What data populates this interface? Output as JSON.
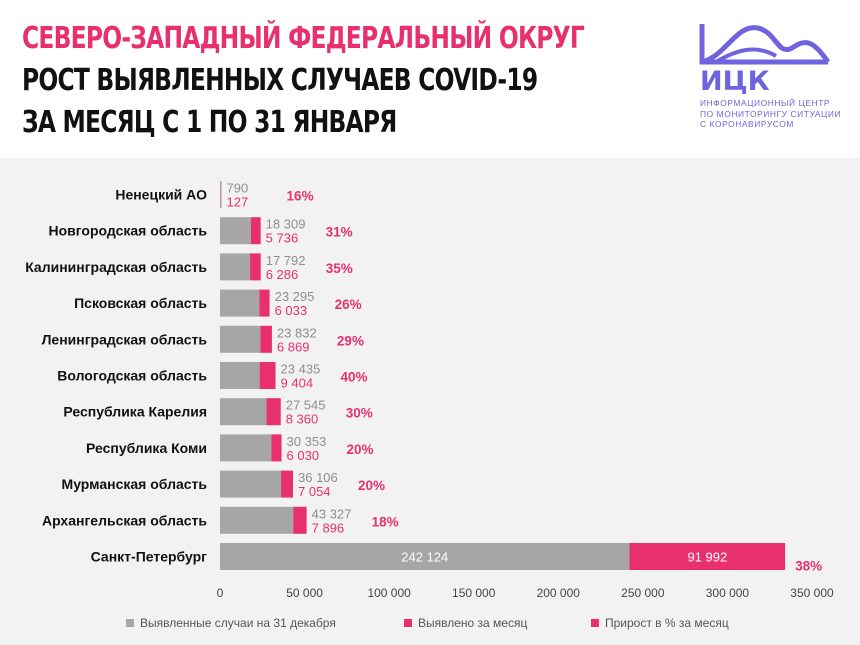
{
  "header": {
    "title_line1": "СЕВЕРО-ЗАПАДНЫЙ ФЕДЕРАЛЬНЫЙ ОКРУГ",
    "title_line2": "РОСТ ВЫЯВЛЕННЫХ СЛУЧАЕВ COVID-19",
    "title_line3": "ЗА МЕСЯЦ С 1 ПО 31 ЯНВАРЯ"
  },
  "logo": {
    "abbr": "ИЦК",
    "line1": "ИНФОРМАЦИОННЫЙ ЦЕНТР",
    "line2": "ПО МОНИТОРИНГУ СИТУАЦИИ",
    "line3": "С КОРОНАВИРУСОМ",
    "color": "#6f63e0"
  },
  "colors": {
    "base": "#a6a6a6",
    "increase": "#e8306f",
    "background": "#f2f2f2"
  },
  "chart_data": {
    "type": "bar",
    "orientation": "horizontal",
    "stacked": true,
    "categories": [
      "Ненецкий АО",
      "Новгородская область",
      "Калининградская область",
      "Псковская область",
      "Ленинградская область",
      "Вологодская область",
      "Республика Карелия",
      "Республика Коми",
      "Мурманская область",
      "Архангельская область",
      "Санкт-Петербург"
    ],
    "series": [
      {
        "name": "Выявленные случаи на 31 декабря",
        "values": [
          790,
          18309,
          17792,
          23295,
          23832,
          23435,
          27545,
          30353,
          36106,
          43327,
          242124
        ],
        "labels": [
          "790",
          "18 309",
          "17 792",
          "23 295",
          "23 832",
          "23 435",
          "27 545",
          "30 353",
          "36 106",
          "43 327",
          "242 124"
        ]
      },
      {
        "name": "Выявлено за месяц",
        "values": [
          127,
          5736,
          6286,
          6033,
          6869,
          9404,
          8360,
          6030,
          7054,
          7896,
          91992
        ],
        "labels": [
          "127",
          "5 736",
          "6 286",
          "6 033",
          "6 869",
          "9 404",
          "8 360",
          "6 030",
          "7 054",
          "7 896",
          "91 992"
        ]
      },
      {
        "name": "Прирост в % за месяц",
        "values": [
          16,
          31,
          35,
          26,
          29,
          40,
          30,
          20,
          20,
          18,
          38
        ],
        "labels": [
          "16%",
          "31%",
          "35%",
          "26%",
          "29%",
          "40%",
          "30%",
          "20%",
          "20%",
          "18%",
          "38%"
        ]
      }
    ],
    "xlim": [
      0,
      350000
    ],
    "xticks": [
      0,
      50000,
      100000,
      150000,
      200000,
      250000,
      300000,
      350000
    ],
    "xtick_labels": [
      "0",
      "50 000",
      "100 000",
      "150 000",
      "200 000",
      "250 000",
      "300 000",
      "350 000"
    ],
    "grid": false,
    "legend": "bottom"
  }
}
